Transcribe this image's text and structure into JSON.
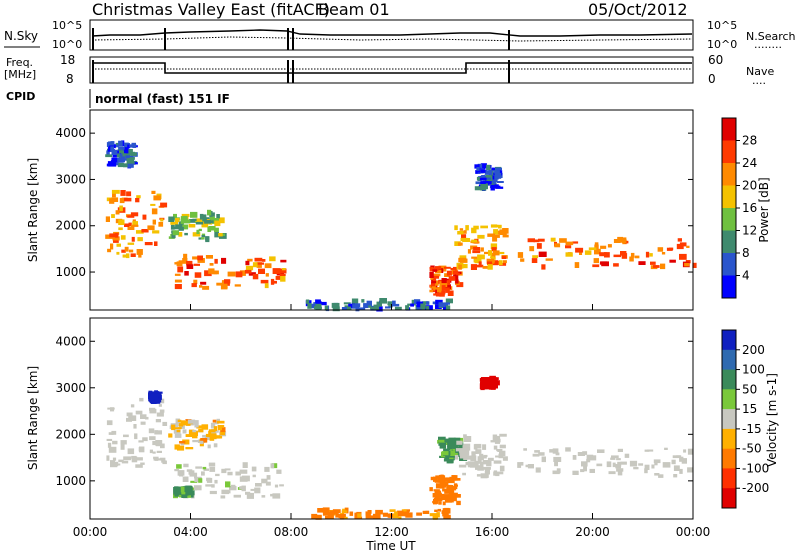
{
  "header": {
    "title": "Christmas Valley East (fitACF)",
    "beam": "Beam 01",
    "date": "05/Oct/2012"
  },
  "top_panel": {
    "left_label": "N.Sky",
    "left_ticks": [
      "10^5",
      "10^0"
    ],
    "right_ticks": [
      "10^5",
      "10^0"
    ],
    "right_label": "N.Search",
    "right_legend": "........"
  },
  "freq_panel": {
    "left_label_1": "Freq.",
    "left_label_2": "[MHz]",
    "left_ticks": [
      "18",
      "8"
    ],
    "right_ticks": [
      "60",
      "0"
    ],
    "right_label": "Nave",
    "right_legend": "....",
    "cpid_label": "CPID",
    "mode_text": "normal (fast) 151 IF"
  },
  "x_axis": {
    "label": "Time UT",
    "ticks": [
      "00:00",
      "04:00",
      "08:00",
      "12:00",
      "16:00",
      "20:00",
      "00:00"
    ]
  },
  "chart_data": [
    {
      "type": "heatmap",
      "title": "",
      "xlabel": "Time UT",
      "ylabel": "Slant Range [km]",
      "x_range": [
        "00:00",
        "24:00"
      ],
      "ylim": [
        180,
        4500
      ],
      "y_ticks": [
        "1000",
        "2000",
        "3000",
        "4000"
      ],
      "colorbar": {
        "label": "Power [dB]",
        "ticks": [
          "4",
          "8",
          "12",
          "16",
          "20",
          "24",
          "28"
        ],
        "colors": [
          "#0000ff",
          "#2a55cc",
          "#3f8a6e",
          "#6fc040",
          "#f4c200",
          "#ff8a00",
          "#ff3a00",
          "#e00000"
        ]
      },
      "echo_regions": [
        {
          "t_start": 0.6,
          "t_end": 2.9,
          "range_start": 1300,
          "range_end": 2750,
          "power_db": 22
        },
        {
          "t_start": 3.1,
          "t_end": 5.2,
          "range_start": 1700,
          "range_end": 2300,
          "power_db": 13
        },
        {
          "t_start": 3.3,
          "t_end": 7.7,
          "range_start": 650,
          "range_end": 1350,
          "power_db": 24
        },
        {
          "t_start": 13.5,
          "t_end": 14.6,
          "range_start": 500,
          "range_end": 1100,
          "power_db": 25
        },
        {
          "t_start": 14.5,
          "t_end": 16.5,
          "range_start": 1100,
          "range_end": 2000,
          "power_db": 21
        },
        {
          "t_start": 17.0,
          "t_end": 24.0,
          "range_start": 1100,
          "range_end": 1700,
          "power_db": 24
        },
        {
          "t_start": 0.6,
          "t_end": 1.8,
          "range_start": 3300,
          "range_end": 3800,
          "power_db": 6
        },
        {
          "t_start": 15.3,
          "t_end": 16.2,
          "range_start": 2800,
          "range_end": 3300,
          "power_db": 5
        },
        {
          "t_start": 8.5,
          "t_end": 14.2,
          "range_start": 200,
          "range_end": 380,
          "power_db": 7
        }
      ]
    },
    {
      "type": "heatmap",
      "title": "",
      "xlabel": "Time UT",
      "ylabel": "Slant Range [km]",
      "x_range": [
        "00:00",
        "24:00"
      ],
      "ylim": [
        180,
        4500
      ],
      "y_ticks": [
        "1000",
        "2000",
        "3000",
        "4000"
      ],
      "colorbar": {
        "label": "Velocity [m s-1]",
        "ticks": [
          "200",
          "100",
          "50",
          "15",
          "-15",
          "-50",
          "-100",
          "-200"
        ],
        "colors": [
          "#1020c0",
          "#2f6ab0",
          "#3a8a5a",
          "#7ac83a",
          "#c8c8c0",
          "#ffb000",
          "#ff7a00",
          "#ff3000",
          "#e00000"
        ]
      },
      "echo_regions": [
        {
          "t_start": 0.6,
          "t_end": 2.9,
          "range_start": 1300,
          "range_end": 2750,
          "velocity_ms": 0
        },
        {
          "t_start": 3.1,
          "t_end": 5.2,
          "range_start": 1700,
          "range_end": 2300,
          "velocity_ms": -20
        },
        {
          "t_start": 3.3,
          "t_end": 7.7,
          "range_start": 650,
          "range_end": 1350,
          "velocity_ms": 5
        },
        {
          "t_start": 3.3,
          "t_end": 3.9,
          "range_start": 680,
          "range_end": 850,
          "velocity_ms": 40
        },
        {
          "t_start": 2.3,
          "t_end": 2.6,
          "range_start": 2700,
          "range_end": 2900,
          "velocity_ms": 200
        },
        {
          "t_start": 13.5,
          "t_end": 14.6,
          "range_start": 500,
          "range_end": 1100,
          "velocity_ms": -60
        },
        {
          "t_start": 13.8,
          "t_end": 14.7,
          "range_start": 1400,
          "range_end": 1900,
          "velocity_ms": 40
        },
        {
          "t_start": 14.5,
          "t_end": 16.5,
          "range_start": 1100,
          "range_end": 2000,
          "velocity_ms": 0
        },
        {
          "t_start": 17.0,
          "t_end": 24.0,
          "range_start": 1100,
          "range_end": 1700,
          "velocity_ms": 0
        },
        {
          "t_start": 15.5,
          "t_end": 16.0,
          "range_start": 3000,
          "range_end": 3200,
          "velocity_ms": -200
        },
        {
          "t_start": 8.5,
          "t_end": 14.2,
          "range_start": 200,
          "range_end": 380,
          "velocity_ms": -40
        }
      ]
    }
  ]
}
